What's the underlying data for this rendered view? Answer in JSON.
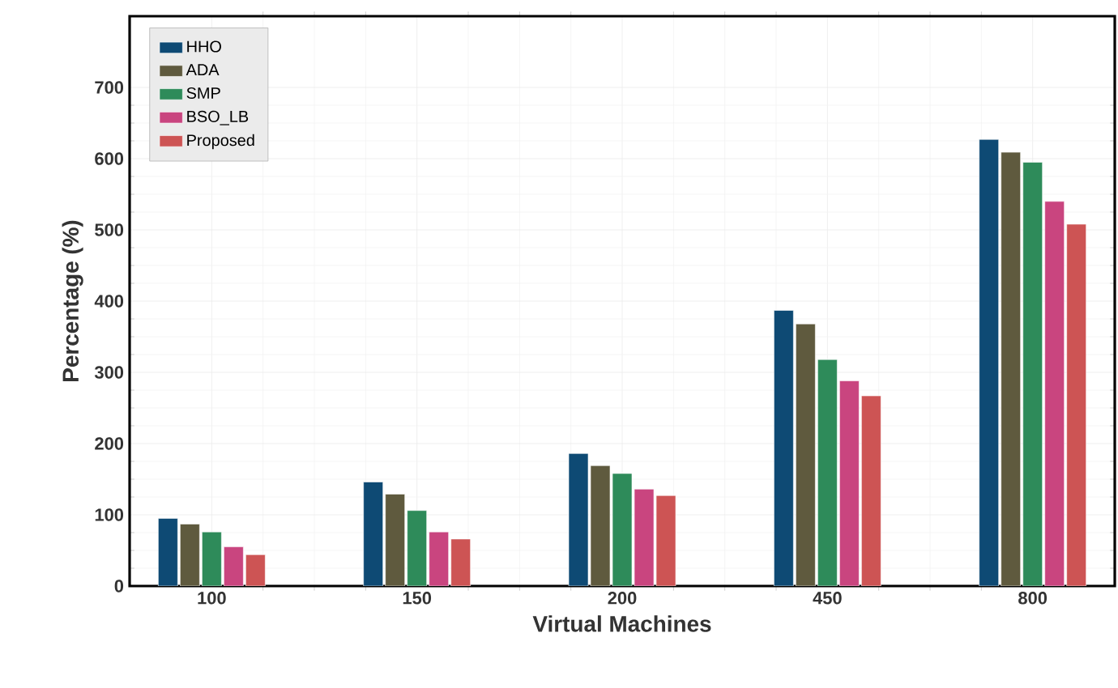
{
  "chart_data": {
    "type": "bar",
    "xlabel": "Virtual Machines",
    "ylabel": "Percentage (%)",
    "categories": [
      "100",
      "150",
      "200",
      "450",
      "800"
    ],
    "series": [
      {
        "name": "HHO",
        "color": "#0e4a74",
        "values": [
          95,
          146,
          186,
          387,
          627
        ]
      },
      {
        "name": "ADA",
        "color": "#5f5a3e",
        "values": [
          87,
          129,
          169,
          368,
          609
        ]
      },
      {
        "name": "SMP",
        "color": "#2e8b5a",
        "values": [
          76,
          106,
          158,
          318,
          595
        ]
      },
      {
        "name": "BSO_LB",
        "color": "#c9457f",
        "values": [
          55,
          76,
          136,
          288,
          540
        ]
      },
      {
        "name": "Proposed",
        "color": "#cd5454",
        "values": [
          44,
          66,
          127,
          267,
          508
        ]
      }
    ],
    "ylim": [
      0,
      800
    ],
    "yticks": [
      0,
      100,
      200,
      300,
      400,
      500,
      600,
      700
    ],
    "grid": true,
    "legend": "top left"
  }
}
